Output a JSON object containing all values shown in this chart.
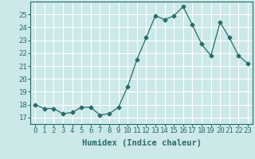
{
  "x": [
    0,
    1,
    2,
    3,
    4,
    5,
    6,
    7,
    8,
    9,
    10,
    11,
    12,
    13,
    14,
    15,
    16,
    17,
    18,
    19,
    20,
    21,
    22,
    23
  ],
  "y": [
    18.0,
    17.7,
    17.7,
    17.3,
    17.4,
    17.8,
    17.8,
    17.2,
    17.3,
    17.8,
    19.4,
    21.5,
    23.2,
    24.9,
    24.6,
    24.9,
    25.6,
    24.2,
    22.7,
    21.8,
    24.4,
    23.2,
    21.8,
    21.2
  ],
  "xlabel": "Humidex (Indice chaleur)",
  "ylim": [
    16.5,
    26.0
  ],
  "xlim": [
    -0.5,
    23.5
  ],
  "yticks": [
    17,
    18,
    19,
    20,
    21,
    22,
    23,
    24,
    25
  ],
  "xticks": [
    0,
    1,
    2,
    3,
    4,
    5,
    6,
    7,
    8,
    9,
    10,
    11,
    12,
    13,
    14,
    15,
    16,
    17,
    18,
    19,
    20,
    21,
    22,
    23
  ],
  "line_color": "#2a6b6b",
  "marker": "D",
  "marker_size": 2.5,
  "bg_color": "#cce8e8",
  "grid_color": "#ffffff",
  "tick_label_fontsize": 6.5,
  "xlabel_fontsize": 7.5,
  "spine_color": "#2a6b6b"
}
